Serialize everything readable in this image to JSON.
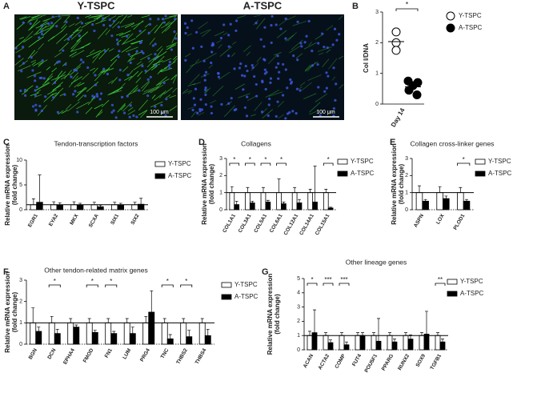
{
  "panel_a": {
    "label": "A",
    "images": [
      {
        "title": "Y-TSPC",
        "scale_bar": "100 μm"
      },
      {
        "title": "A-TSPC",
        "scale_bar": "100 μm"
      }
    ]
  },
  "chart_data": [
    {
      "type": "scatter",
      "label": "B",
      "y_label": "Col I/DNA",
      "categories": [
        "Day 14"
      ],
      "significance": "*",
      "ylim": [
        0,
        3
      ],
      "yticks": [
        0,
        1,
        2,
        3
      ],
      "series": [
        {
          "name": "Y-TSPC",
          "color": "#ffffff",
          "values": [
            2.35,
            2.0,
            1.75
          ]
        },
        {
          "name": "A-TSPC",
          "color": "#000000",
          "values": [
            0.75,
            0.7,
            0.6,
            0.45,
            0.3
          ]
        }
      ]
    },
    {
      "type": "bar",
      "label": "C",
      "title": "Tendon-transcription factors",
      "y_label": [
        "Relative mRNA expression",
        "(fold change)"
      ],
      "categories": [
        "EGR1",
        "EYA2",
        "MKX",
        "SCXA",
        "SIX1",
        "SIX2"
      ],
      "ylim": [
        0,
        10
      ],
      "yticks": [
        0,
        5,
        10
      ],
      "reference_line": 1,
      "significance": [
        null,
        null,
        null,
        null,
        null,
        null
      ],
      "series": [
        {
          "name": "Y-TSPC",
          "color": "#ffffff",
          "values": [
            1,
            1,
            1,
            1,
            1,
            1
          ],
          "errors": [
            1.2,
            0.6,
            0.6,
            0.5,
            0.5,
            0.5
          ]
        },
        {
          "name": "A-TSPC",
          "color": "#000000",
          "values": [
            1.5,
            0.9,
            0.9,
            0.6,
            0.9,
            1.1
          ],
          "errors": [
            5.5,
            0.5,
            0.4,
            0.3,
            0.4,
            1.2
          ]
        }
      ]
    },
    {
      "type": "bar",
      "label": "D",
      "title": "Collagens",
      "y_label": [
        "Relative mRNA expression",
        "(fold change)"
      ],
      "categories": [
        "COL1A1",
        "COL3A1",
        "COL5A1",
        "COL6A1",
        "COL12A1",
        "COL14A1",
        "COL15A1"
      ],
      "ylim": [
        0,
        3
      ],
      "yticks": [
        0,
        1,
        2,
        3
      ],
      "reference_line": 1,
      "significance": [
        "*",
        "*",
        "*",
        "*",
        null,
        null,
        "*"
      ],
      "series": [
        {
          "name": "Y-TSPC",
          "color": "#ffffff",
          "values": [
            1,
            1,
            1,
            1,
            1,
            1,
            1
          ],
          "errors": [
            0.35,
            0.3,
            0.3,
            0.8,
            0.3,
            0.2,
            0.2
          ]
        },
        {
          "name": "A-TSPC",
          "color": "#000000",
          "values": [
            0.3,
            0.4,
            0.45,
            0.35,
            0.4,
            0.45,
            0.1
          ],
          "errors": [
            0.2,
            0.1,
            0.1,
            0.1,
            0.2,
            2.1,
            0.05
          ]
        }
      ]
    },
    {
      "type": "bar",
      "label": "E",
      "title": "Collagen cross-linker genes",
      "y_label": [
        "Relative mRNA expression",
        "(fold change)"
      ],
      "categories": [
        "ASPN",
        "LOX",
        "PLOD1"
      ],
      "ylim": [
        0,
        3
      ],
      "yticks": [
        0,
        1,
        2,
        3
      ],
      "reference_line": 1,
      "significance": [
        null,
        null,
        "*"
      ],
      "series": [
        {
          "name": "Y-TSPC",
          "color": "#ffffff",
          "values": [
            1,
            1,
            1
          ],
          "errors": [
            0.4,
            0.35,
            0.3
          ]
        },
        {
          "name": "A-TSPC",
          "color": "#000000",
          "values": [
            0.5,
            0.65,
            0.5
          ],
          "errors": [
            0.1,
            0.15,
            0.1
          ]
        }
      ]
    },
    {
      "type": "bar",
      "label": "F",
      "title": "Other tendon-related matrix genes",
      "y_label": [
        "Relative mRNA expression",
        "(fold change)"
      ],
      "categories": [
        "BGN",
        "DCN",
        "EPHA4",
        "FMOD",
        "FN1",
        "LUM",
        "PRG4",
        "TNC",
        "THBS2",
        "THBS4"
      ],
      "ylim": [
        0,
        3
      ],
      "yticks": [
        0,
        1,
        2,
        3
      ],
      "reference_line": 1,
      "significance": [
        null,
        "*",
        null,
        "*",
        "*",
        null,
        null,
        "*",
        "*",
        null
      ],
      "series": [
        {
          "name": "Y-TSPC",
          "color": "#ffffff",
          "values": [
            1,
            1,
            1,
            1,
            1,
            1,
            1,
            1,
            1,
            1
          ],
          "errors": [
            0.7,
            0.3,
            0.2,
            0.2,
            0.2,
            0.2,
            0.3,
            0.2,
            0.2,
            0.2
          ]
        },
        {
          "name": "A-TSPC",
          "color": "#000000",
          "values": [
            0.6,
            0.5,
            0.8,
            0.55,
            0.5,
            0.5,
            1.5,
            0.25,
            0.35,
            0.4
          ],
          "errors": [
            0.2,
            0.2,
            0.1,
            0.1,
            0.1,
            0.3,
            1.0,
            0.2,
            0.3,
            0.3
          ]
        }
      ]
    },
    {
      "type": "bar",
      "label": "G",
      "title": "Other lineage genes",
      "y_label": [
        "Relative mRNA expression",
        "(fold change)"
      ],
      "categories": [
        "ACAN",
        "ACTA2",
        "COMP",
        "FUT4",
        "POU5F1",
        "PPARG",
        "RUNX2",
        "SOX9",
        "TGFB1"
      ],
      "ylim": [
        0,
        5
      ],
      "yticks": [
        0,
        1,
        2,
        3,
        4,
        5
      ],
      "reference_line": 1,
      "significance": [
        "*",
        "***",
        "***",
        null,
        null,
        null,
        null,
        null,
        "**"
      ],
      "series": [
        {
          "name": "Y-TSPC",
          "color": "#ffffff",
          "values": [
            1,
            1,
            1,
            1,
            1,
            1,
            1,
            1,
            1
          ],
          "errors": [
            0.3,
            0.2,
            0.2,
            0.2,
            0.2,
            0.2,
            0.2,
            0.2,
            0.2
          ]
        },
        {
          "name": "A-TSPC",
          "color": "#000000",
          "values": [
            1.2,
            0.5,
            0.35,
            1.0,
            0.6,
            0.55,
            0.75,
            1.1,
            0.55
          ],
          "errors": [
            1.6,
            0.2,
            0.2,
            0.2,
            1.6,
            0.2,
            0.3,
            1.6,
            0.2
          ]
        }
      ]
    }
  ]
}
